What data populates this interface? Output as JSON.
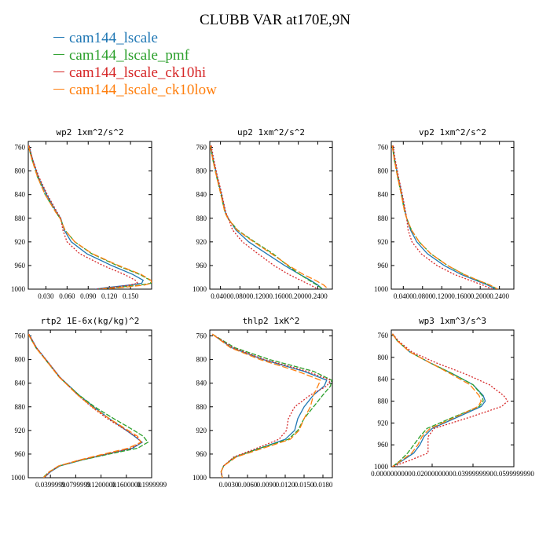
{
  "title": "CLUBB VAR at170E,9N",
  "legend": [
    {
      "label": "cam144_lscale",
      "color": "#1f77b4"
    },
    {
      "label": "cam144_lscale_pmf",
      "color": "#2ca02c"
    },
    {
      "label": "cam144_lscale_ck10hi",
      "color": "#d62728"
    },
    {
      "label": "cam144_lscale_ck10low",
      "color": "#ff7f0e"
    }
  ],
  "chart_data": [
    {
      "type": "line",
      "title": "wp2   1xm^2/s^2",
      "ylim": [
        1000,
        750
      ],
      "yticks": [
        760,
        800,
        840,
        880,
        920,
        960,
        1000
      ],
      "xlim": [
        0.005,
        0.18
      ],
      "xticks": [
        0.03,
        0.06,
        0.09,
        0.12,
        0.15
      ],
      "xticklabels": [
        "0.030",
        "0.060",
        "0.090",
        "0.120",
        "0.150"
      ],
      "y": [
        757,
        780,
        810,
        840,
        870,
        880,
        900,
        920,
        940,
        960,
        975,
        985,
        990,
        993,
        997,
        1000
      ],
      "series": [
        {
          "x": [
            0.006,
            0.011,
            0.019,
            0.031,
            0.045,
            0.051,
            0.056,
            0.066,
            0.088,
            0.123,
            0.153,
            0.168,
            0.166,
            0.15,
            0.12,
            0.1
          ]
        },
        {
          "x": [
            0.005,
            0.01,
            0.018,
            0.029,
            0.044,
            0.05,
            0.057,
            0.071,
            0.095,
            0.131,
            0.163,
            0.178,
            0.179,
            0.165,
            0.133,
            0.105
          ]
        },
        {
          "x": [
            0.006,
            0.011,
            0.02,
            0.032,
            0.046,
            0.051,
            0.054,
            0.06,
            0.078,
            0.111,
            0.141,
            0.157,
            0.16,
            0.15,
            0.125,
            0.1
          ]
        },
        {
          "x": [
            0.005,
            0.01,
            0.018,
            0.029,
            0.044,
            0.05,
            0.057,
            0.071,
            0.096,
            0.133,
            0.165,
            0.179,
            0.18,
            0.17,
            0.14,
            0.11
          ]
        }
      ]
    },
    {
      "type": "line",
      "title": "up2   1xm^2/s^2",
      "ylim": [
        1000,
        750
      ],
      "yticks": [
        760,
        800,
        840,
        880,
        920,
        960,
        1000
      ],
      "xlim": [
        0.018,
        0.27
      ],
      "xticks": [
        0.04,
        0.08,
        0.12,
        0.16,
        0.2,
        0.24
      ],
      "xticklabels": [
        "0.0400",
        "0.0800",
        "0.1200",
        "0.1600",
        "0.2000",
        "0.2400"
      ],
      "y": [
        757,
        780,
        810,
        840,
        870,
        880,
        900,
        920,
        940,
        960,
        975,
        985,
        993,
        1000
      ],
      "series": [
        {
          "x": [
            0.02,
            0.025,
            0.033,
            0.042,
            0.05,
            0.056,
            0.072,
            0.098,
            0.135,
            0.172,
            0.203,
            0.225,
            0.24,
            0.25
          ]
        },
        {
          "x": [
            0.019,
            0.024,
            0.032,
            0.041,
            0.049,
            0.055,
            0.075,
            0.11,
            0.148,
            0.178,
            0.203,
            0.222,
            0.238,
            0.25
          ]
        },
        {
          "x": [
            0.021,
            0.026,
            0.034,
            0.043,
            0.051,
            0.056,
            0.065,
            0.085,
            0.117,
            0.15,
            0.18,
            0.205,
            0.225,
            0.24
          ]
        },
        {
          "x": [
            0.019,
            0.024,
            0.032,
            0.041,
            0.049,
            0.055,
            0.074,
            0.108,
            0.145,
            0.18,
            0.21,
            0.235,
            0.252,
            0.262
          ]
        }
      ]
    },
    {
      "type": "line",
      "title": "vp2   1xm^2/s^2",
      "ylim": [
        1000,
        750
      ],
      "yticks": [
        760,
        800,
        840,
        880,
        920,
        960,
        1000
      ],
      "xlim": [
        0.015,
        0.27
      ],
      "xticks": [
        0.04,
        0.08,
        0.12,
        0.16,
        0.2,
        0.24
      ],
      "xticklabels": [
        "0.0400",
        "0.0800",
        "0.1200",
        "0.1600",
        "0.2000",
        "0.2400"
      ],
      "y": [
        757,
        780,
        810,
        840,
        870,
        880,
        900,
        920,
        940,
        960,
        975,
        985,
        993,
        1000
      ],
      "series": [
        {
          "x": [
            0.018,
            0.022,
            0.029,
            0.037,
            0.044,
            0.047,
            0.055,
            0.068,
            0.09,
            0.125,
            0.16,
            0.19,
            0.215,
            0.232
          ]
        },
        {
          "x": [
            0.017,
            0.021,
            0.028,
            0.036,
            0.043,
            0.047,
            0.057,
            0.073,
            0.097,
            0.132,
            0.166,
            0.195,
            0.22,
            0.236
          ]
        },
        {
          "x": [
            0.019,
            0.023,
            0.03,
            0.038,
            0.045,
            0.047,
            0.05,
            0.058,
            0.077,
            0.11,
            0.146,
            0.178,
            0.205,
            0.225
          ]
        },
        {
          "x": [
            0.017,
            0.021,
            0.028,
            0.036,
            0.043,
            0.047,
            0.057,
            0.073,
            0.097,
            0.132,
            0.166,
            0.195,
            0.22,
            0.236
          ]
        }
      ]
    },
    {
      "type": "line",
      "title": "rtp2   1E-6x(kg/kg)^2",
      "ylim": [
        1000,
        750
      ],
      "yticks": [
        760,
        800,
        840,
        880,
        920,
        960,
        1000
      ],
      "xlim": [
        0.005,
        0.2
      ],
      "xticks": [
        0.04,
        0.08,
        0.12,
        0.16,
        0.2
      ],
      "xticklabels": [
        "0.0399999",
        "0.0799999",
        "0.1200000",
        "0.1600000",
        "0.1999999"
      ],
      "y": [
        757,
        780,
        800,
        830,
        860,
        880,
        900,
        920,
        930,
        940,
        950,
        960,
        970,
        980,
        990,
        1000
      ],
      "series": [
        {
          "x": [
            0.006,
            0.018,
            0.033,
            0.055,
            0.085,
            0.108,
            0.133,
            0.16,
            0.173,
            0.185,
            0.17,
            0.13,
            0.09,
            0.055,
            0.04,
            0.03
          ]
        },
        {
          "x": [
            0.005,
            0.017,
            0.032,
            0.054,
            0.085,
            0.11,
            0.14,
            0.172,
            0.187,
            0.194,
            0.178,
            0.133,
            0.09,
            0.054,
            0.038,
            0.028
          ]
        },
        {
          "x": [
            0.006,
            0.018,
            0.033,
            0.055,
            0.083,
            0.105,
            0.13,
            0.16,
            0.175,
            0.184,
            0.168,
            0.128,
            0.088,
            0.053,
            0.039,
            0.03
          ]
        },
        {
          "x": [
            0.005,
            0.017,
            0.032,
            0.054,
            0.083,
            0.106,
            0.133,
            0.163,
            0.178,
            0.183,
            0.163,
            0.124,
            0.086,
            0.053,
            0.038,
            0.029
          ]
        }
      ]
    },
    {
      "type": "line",
      "title": "thlp2   1xK^2",
      "ylim": [
        1000,
        750
      ],
      "yticks": [
        760,
        800,
        840,
        880,
        920,
        960,
        1000
      ],
      "xlim": [
        0.0,
        0.0195
      ],
      "xticks": [
        0.003,
        0.006,
        0.009,
        0.012,
        0.015,
        0.018
      ],
      "xticklabels": [
        "0.0030",
        "0.0060",
        "0.0090",
        "0.0120",
        "0.0150",
        "0.0180"
      ],
      "y": [
        757,
        780,
        800,
        820,
        835,
        845,
        860,
        880,
        900,
        920,
        935,
        950,
        965,
        980,
        990,
        1000
      ],
      "series": [
        {
          "x": [
            0.0004,
            0.0035,
            0.0085,
            0.015,
            0.0186,
            0.0182,
            0.0165,
            0.015,
            0.014,
            0.0135,
            0.012,
            0.008,
            0.004,
            0.0022,
            0.0018,
            0.002
          ]
        },
        {
          "x": [
            0.0004,
            0.004,
            0.0095,
            0.0165,
            0.0194,
            0.0192,
            0.018,
            0.0165,
            0.015,
            0.014,
            0.0125,
            0.008,
            0.004,
            0.0022,
            0.0018,
            0.002
          ]
        },
        {
          "x": [
            0.0004,
            0.0037,
            0.0087,
            0.0155,
            0.0192,
            0.0186,
            0.016,
            0.0135,
            0.0125,
            0.0122,
            0.011,
            0.0075,
            0.0038,
            0.0022,
            0.0018,
            0.002
          ]
        },
        {
          "x": [
            0.0004,
            0.0033,
            0.008,
            0.014,
            0.0176,
            0.0172,
            0.0165,
            0.016,
            0.015,
            0.0142,
            0.0128,
            0.0085,
            0.0042,
            0.0022,
            0.0018,
            0.002
          ]
        }
      ]
    },
    {
      "type": "line",
      "title": "wp3   1xm^3/s^3",
      "ylim": [
        1000,
        750
      ],
      "yticks": [
        760,
        800,
        840,
        880,
        920,
        960,
        1000
      ],
      "xlim": [
        0.0,
        0.06
      ],
      "xticks": [
        0.0,
        0.02,
        0.04,
        0.06
      ],
      "xticklabels": [
        "0.0000000000",
        "0.0200000000",
        "0.0399999990",
        "0.0599999990"
      ],
      "y": [
        757,
        770,
        790,
        810,
        830,
        850,
        870,
        880,
        890,
        910,
        930,
        945,
        960,
        975,
        990,
        1000
      ],
      "series": [
        {
          "x": [
            0.0006,
            0.003,
            0.009,
            0.019,
            0.03,
            0.04,
            0.045,
            0.046,
            0.044,
            0.032,
            0.02,
            0.016,
            0.014,
            0.011,
            0.005,
            0.0005
          ]
        },
        {
          "x": [
            0.0005,
            0.003,
            0.009,
            0.019,
            0.03,
            0.04,
            0.0445,
            0.045,
            0.043,
            0.03,
            0.0175,
            0.014,
            0.011,
            0.008,
            0.004,
            0.0005
          ]
        },
        {
          "x": [
            0.0006,
            0.0035,
            0.01,
            0.022,
            0.036,
            0.048,
            0.055,
            0.057,
            0.054,
            0.038,
            0.021,
            0.018,
            0.018,
            0.018,
            0.008,
            0.0005
          ]
        },
        {
          "x": [
            0.0005,
            0.003,
            0.009,
            0.019,
            0.029,
            0.0385,
            0.043,
            0.044,
            0.0425,
            0.031,
            0.019,
            0.015,
            0.013,
            0.01,
            0.0045,
            0.0005
          ]
        }
      ]
    }
  ]
}
